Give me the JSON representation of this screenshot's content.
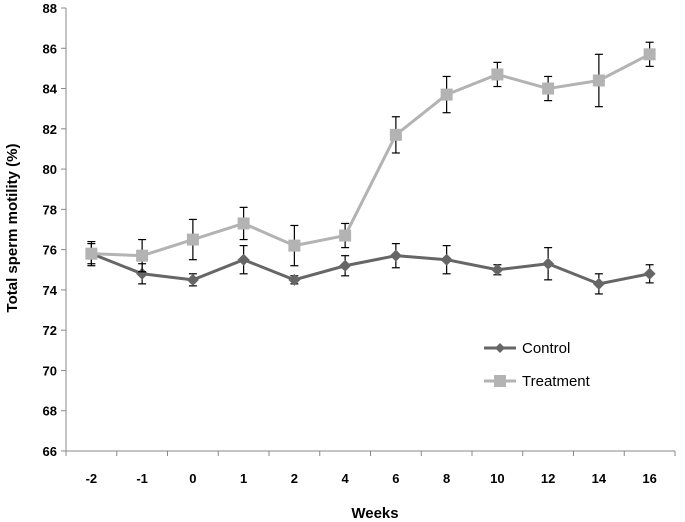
{
  "chart_data": {
    "type": "line",
    "title": "",
    "xlabel": "Weeks",
    "ylabel": "Total sperm motility (%)",
    "categories": [
      "-2",
      "-1",
      "0",
      "1",
      "2",
      "4",
      "6",
      "8",
      "10",
      "12",
      "14",
      "16"
    ],
    "ylim": [
      66,
      88
    ],
    "yticks": [
      66,
      68,
      70,
      72,
      74,
      76,
      78,
      80,
      82,
      84,
      86,
      88
    ],
    "grid": false,
    "legend_position": "lower-right",
    "series": [
      {
        "name": "Control",
        "marker": "diamond",
        "color": "#666666",
        "values": [
          75.8,
          74.8,
          74.5,
          75.5,
          74.5,
          75.2,
          75.7,
          75.5,
          75.0,
          75.3,
          74.3,
          74.8
        ],
        "errors": [
          0.6,
          0.5,
          0.3,
          0.7,
          0.2,
          0.5,
          0.6,
          0.7,
          0.25,
          0.8,
          0.5,
          0.45
        ]
      },
      {
        "name": "Treatment",
        "marker": "square",
        "color": "#b3b3b3",
        "values": [
          75.8,
          75.7,
          76.5,
          77.3,
          76.2,
          76.7,
          81.7,
          83.7,
          84.7,
          84.0,
          84.4,
          85.7
        ],
        "errors": [
          0.5,
          0.8,
          1.0,
          0.8,
          1.0,
          0.6,
          0.9,
          0.9,
          0.6,
          0.6,
          1.3,
          0.6
        ]
      }
    ]
  }
}
